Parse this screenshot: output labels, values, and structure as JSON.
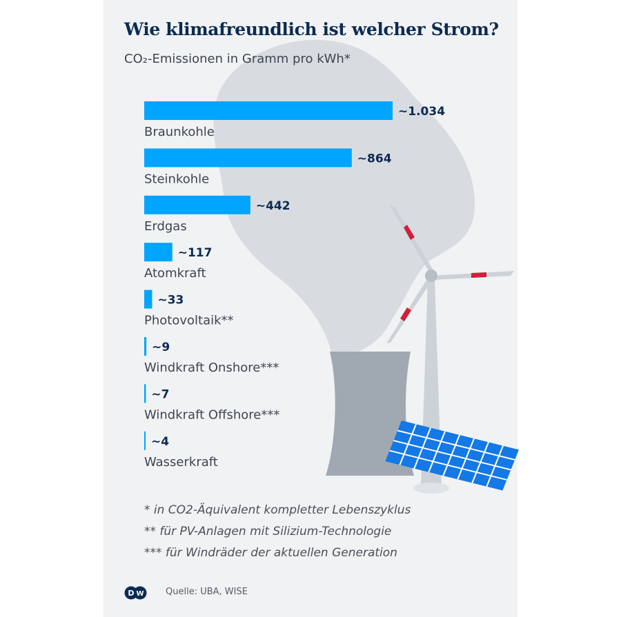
{
  "title": "Wie klimafreundlich ist welcher Strom?",
  "subtitle": "CO₂-Emissionen in Gramm pro kWh*",
  "chart_data": {
    "type": "bar",
    "orientation": "horizontal",
    "categories": [
      "Braunkohle",
      "Steinkohle",
      "Erdgas",
      "Atomkraft",
      "Photovoltaik**",
      "Windkraft Onshore***",
      "Windkraft Offshore***",
      "Wasserkraft"
    ],
    "values": [
      1034,
      864,
      442,
      117,
      33,
      9,
      7,
      4
    ],
    "data_labels": [
      "~1.034",
      "~864",
      "~442",
      "~117",
      "~33",
      "~9",
      "~7",
      "~4"
    ],
    "title": "Wie klimafreundlich ist welcher Strom?",
    "ylabel": "CO₂-Emissionen in Gramm pro kWh*",
    "bar_color": "#00a5ff",
    "label_color": "#0c2b52",
    "grid": false
  },
  "notes": [
    "* in CO2-Äquivalent kompletter Lebenszyklus",
    "** für PV-Anlagen mit Silizium-Technologie",
    "*** für Windräder der aktuellen Generation"
  ],
  "source": "Quelle: UBA, WISE",
  "logo": "DW"
}
